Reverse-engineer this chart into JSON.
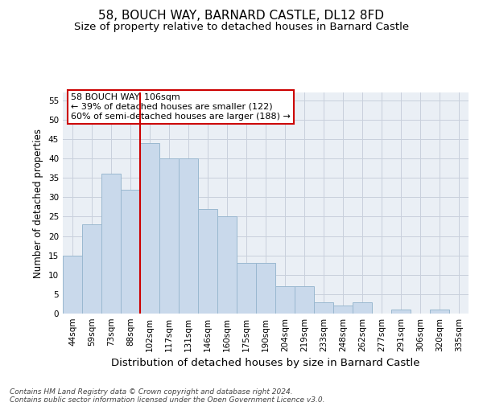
{
  "title1": "58, BOUCH WAY, BARNARD CASTLE, DL12 8FD",
  "title2": "Size of property relative to detached houses in Barnard Castle",
  "xlabel": "Distribution of detached houses by size in Barnard Castle",
  "ylabel": "Number of detached properties",
  "categories": [
    "44sqm",
    "59sqm",
    "73sqm",
    "88sqm",
    "102sqm",
    "117sqm",
    "131sqm",
    "146sqm",
    "160sqm",
    "175sqm",
    "190sqm",
    "204sqm",
    "219sqm",
    "233sqm",
    "248sqm",
    "262sqm",
    "277sqm",
    "291sqm",
    "306sqm",
    "320sqm",
    "335sqm"
  ],
  "values": [
    15,
    23,
    36,
    32,
    44,
    40,
    40,
    27,
    25,
    13,
    13,
    7,
    7,
    3,
    2,
    3,
    0,
    1,
    0,
    1,
    0
  ],
  "bar_color": "#c9d9eb",
  "bar_edge_color": "#9ab8d0",
  "bar_width": 1.0,
  "ylim": [
    0,
    57
  ],
  "yticks": [
    0,
    5,
    10,
    15,
    20,
    25,
    30,
    35,
    40,
    45,
    50,
    55
  ],
  "property_label": "58 BOUCH WAY: 106sqm",
  "annotation_line1": "← 39% of detached houses are smaller (122)",
  "annotation_line2": "60% of semi-detached houses are larger (188) →",
  "vline_x_index": 4,
  "vline_color": "#cc0000",
  "annotation_box_color": "#ffffff",
  "annotation_box_edge": "#cc0000",
  "grid_color": "#c8d0dc",
  "background_color": "#eaeff5",
  "footer1": "Contains HM Land Registry data © Crown copyright and database right 2024.",
  "footer2": "Contains public sector information licensed under the Open Government Licence v3.0.",
  "title_fontsize": 11,
  "subtitle_fontsize": 9.5,
  "tick_fontsize": 7.5,
  "xlabel_fontsize": 9.5,
  "ylabel_fontsize": 8.5,
  "annotation_fontsize": 8,
  "footer_fontsize": 6.5
}
